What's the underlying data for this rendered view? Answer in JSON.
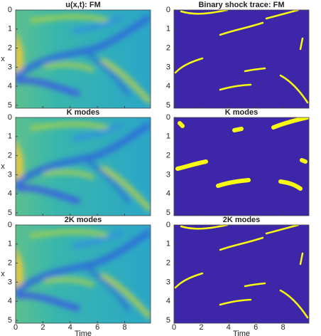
{
  "chart_data": [
    {
      "type": "heatmap",
      "title": "u(x,t): FM",
      "ylabel": "x",
      "xlim": [
        0,
        9.9
      ],
      "ylim": [
        0,
        5.15
      ],
      "xticks": [
        0,
        2,
        4,
        6,
        8
      ],
      "yticks": [
        0,
        1,
        2,
        3,
        4,
        5
      ]
    },
    {
      "type": "shock-trace",
      "title": "Binary shock trace: FM",
      "xlim": [
        0,
        9.9
      ],
      "ylim": [
        0,
        5.15
      ],
      "xticks": [
        0,
        2,
        4,
        6,
        8
      ],
      "yticks": [
        0,
        1,
        2,
        3,
        4,
        5
      ]
    },
    {
      "type": "heatmap",
      "title": "K modes",
      "ylabel": "x",
      "xlim": [
        0,
        9.9
      ],
      "ylim": [
        0,
        5.15
      ],
      "xticks": [
        0,
        2,
        4,
        6,
        8
      ],
      "yticks": [
        0,
        1,
        2,
        3,
        4,
        5
      ]
    },
    {
      "type": "shock-trace-thick",
      "title": "K modes",
      "xlim": [
        0,
        9.9
      ],
      "ylim": [
        0,
        5.15
      ],
      "xticks": [
        0,
        2,
        4,
        6,
        8
      ],
      "yticks": [
        0,
        1,
        2,
        3,
        4,
        5
      ]
    },
    {
      "type": "heatmap",
      "title": "2K modes",
      "ylabel": "x",
      "xlabel": "Time",
      "xlim": [
        0,
        9.9
      ],
      "ylim": [
        0,
        5.15
      ],
      "xticks": [
        0,
        2,
        4,
        6,
        8
      ],
      "yticks": [
        0,
        1,
        2,
        3,
        4,
        5
      ]
    },
    {
      "type": "shock-trace",
      "title": "2K modes",
      "xlabel": "Time",
      "xlim": [
        0,
        9.9
      ],
      "ylim": [
        0,
        5.15
      ],
      "xticks": [
        0,
        2,
        4,
        6,
        8
      ],
      "yticks": [
        0,
        1,
        2,
        3,
        4,
        5
      ]
    }
  ]
}
